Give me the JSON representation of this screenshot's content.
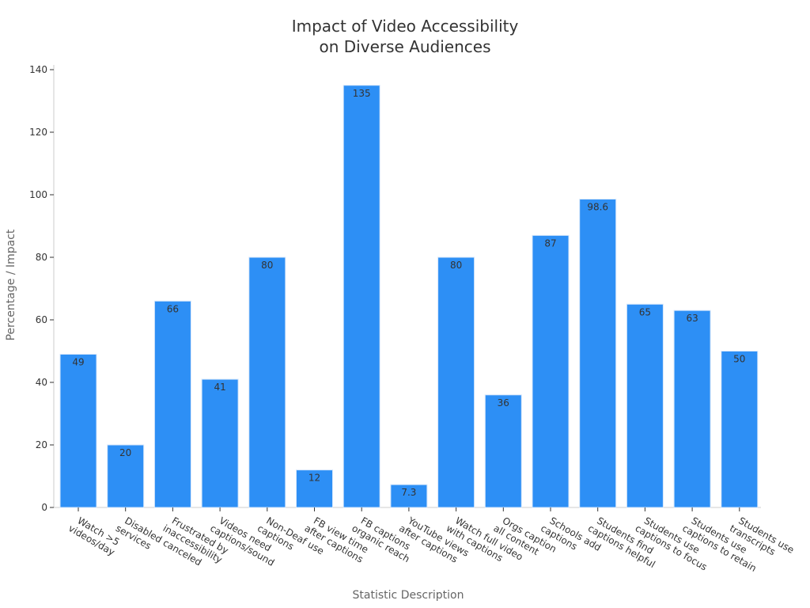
{
  "chart_data": {
    "type": "bar",
    "title_lines": [
      "Impact of Video Accessibility",
      "on Diverse Audiences"
    ],
    "xlabel": "Statistic Description",
    "ylabel": "Percentage / Impact",
    "ylim": [
      0,
      140
    ],
    "yticks": [
      0,
      20,
      40,
      60,
      80,
      100,
      120,
      140
    ],
    "grid": false,
    "bar_color": "#2d8ff5",
    "categories": [
      [
        "Watch >5",
        "videos/day"
      ],
      [
        "Disabled canceled",
        "services"
      ],
      [
        "Frustrated by",
        "inaccessibility"
      ],
      [
        "Videos need",
        "captions/sound"
      ],
      [
        "Non-Deaf use",
        "captions"
      ],
      [
        "FB view time",
        "after captions"
      ],
      [
        "FB captions",
        "organic reach"
      ],
      [
        "YouTube views",
        "after captions"
      ],
      [
        "Watch full video",
        "with captions"
      ],
      [
        "Orgs caption",
        "all content"
      ],
      [
        "Schools add",
        "captions"
      ],
      [
        "Students find",
        "captions helpful"
      ],
      [
        "Students use",
        "captions to focus"
      ],
      [
        "Students use",
        "captions to retain"
      ],
      [
        "Students use",
        "transcripts"
      ]
    ],
    "values": [
      49,
      20,
      66,
      41,
      80,
      12,
      135,
      7.3,
      80,
      36,
      87,
      98.6,
      65,
      63,
      50
    ],
    "value_labels": [
      "49",
      "20",
      "66",
      "41",
      "80",
      "12",
      "135",
      "7.3",
      "80",
      "36",
      "87",
      "98.6",
      "65",
      "63",
      "50"
    ]
  }
}
